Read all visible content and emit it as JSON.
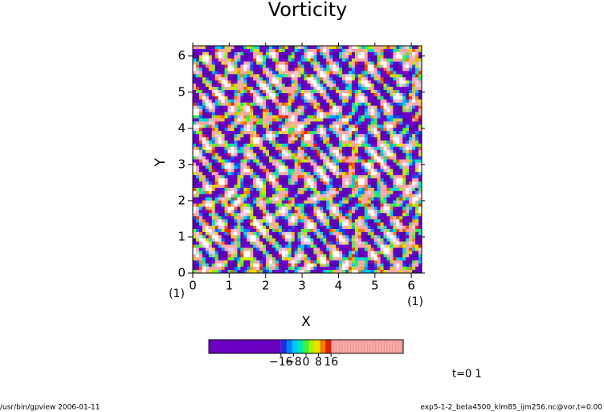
{
  "chart_data": {
    "type": "heatmap",
    "title": "Vorticity",
    "xlabel": "X",
    "ylabel": "Y",
    "xunit": "(1)",
    "yunit": "(1)",
    "xlim": [
      0,
      6.283
    ],
    "ylim": [
      0,
      6.283
    ],
    "xticks": [
      0,
      1,
      2,
      3,
      4,
      5,
      6
    ],
    "yticks": [
      0,
      1,
      2,
      3,
      4,
      5,
      6
    ],
    "clim": [
      -62,
      62
    ],
    "cticks": [
      {
        "value": -16,
        "label": "−16"
      },
      {
        "value": -8,
        "label": "−8"
      },
      0,
      8,
      16
    ],
    "color_low": "#7000c8",
    "color_high": "#f8a8a8",
    "colors": [
      "#2030e0",
      "#0080ff",
      "#00c8ff",
      "#00e8b0",
      "#40f040",
      "#b0f000",
      "#f0e000",
      "#f08000",
      "#e02000"
    ],
    "time_label": "t=0 1",
    "footer_left": "/usr/bin/gpview  2006-01-11",
    "footer_right": "exp5-1-2_beta4500_klm85_ijm256.nc@vor,t=0.00"
  }
}
